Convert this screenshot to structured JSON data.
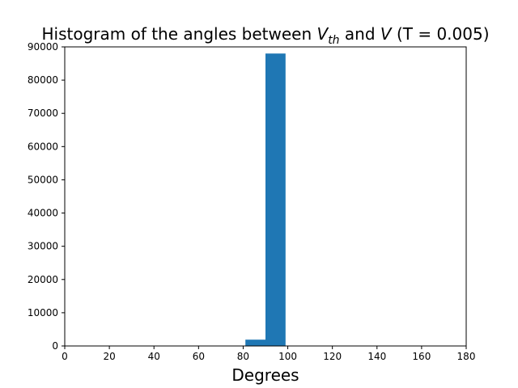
{
  "chart_data": {
    "type": "bar",
    "title": {
      "prefix": "Histogram of the angles between ",
      "var1": "V",
      "var1_sub": "th",
      "middle": " and ",
      "var2": "V",
      "suffix": " (T = 0.005)"
    },
    "xlabel": "Degrees",
    "ylabel": "",
    "xlim": [
      0,
      180
    ],
    "ylim": [
      0,
      90000
    ],
    "xticks": [
      "0",
      "20",
      "40",
      "60",
      "80",
      "100",
      "120",
      "140",
      "160",
      "180"
    ],
    "yticks": [
      "0",
      "10000",
      "20000",
      "30000",
      "40000",
      "50000",
      "60000",
      "70000",
      "80000",
      "90000"
    ],
    "bar_color": "#1f77b4",
    "grid": false,
    "bins": [
      {
        "x0": 81,
        "x1": 90,
        "count": 1900
      },
      {
        "x0": 90,
        "x1": 99,
        "count": 88000
      }
    ]
  }
}
